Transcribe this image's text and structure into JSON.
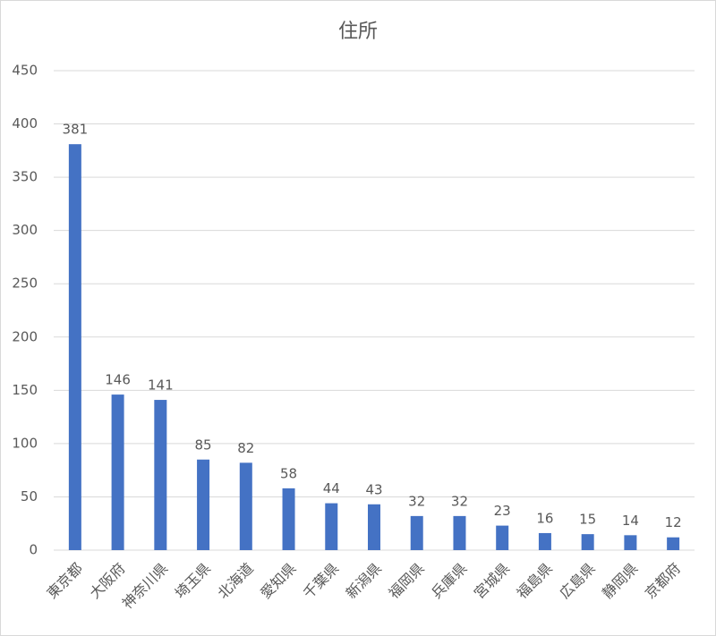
{
  "chart_data": {
    "type": "bar",
    "title": "住所",
    "categories": [
      "東京都",
      "大阪府",
      "神奈川県",
      "埼玉県",
      "北海道",
      "愛知県",
      "千葉県",
      "新潟県",
      "福岡県",
      "兵庫県",
      "宮城県",
      "福島県",
      "広島県",
      "静岡県",
      "京都府"
    ],
    "values": [
      381,
      146,
      141,
      85,
      82,
      58,
      44,
      43,
      32,
      32,
      23,
      16,
      15,
      14,
      12
    ],
    "color": "#4472c4",
    "ylim": [
      0,
      450
    ],
    "yticks": [
      0,
      50,
      100,
      150,
      200,
      250,
      300,
      350,
      400,
      450
    ],
    "grid": true
  }
}
